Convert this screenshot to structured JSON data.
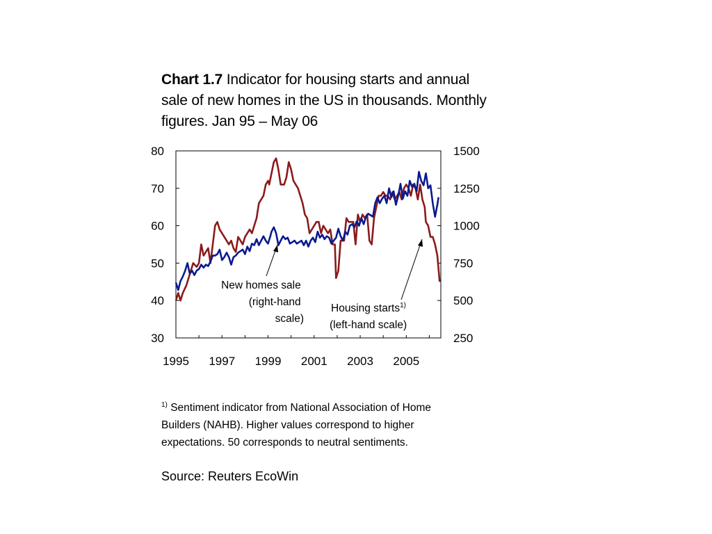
{
  "title": {
    "bold": "Chart 1.7",
    "text": " Indicator for housing starts and annual sale of new homes in the US in thousands. Monthly figures. Jan 95 – May 06"
  },
  "footnote": {
    "marker": "1)",
    "text": " Sentiment indicator from National Association of Home Builders (NAHB). Higher values correspond to higher expectations. 50 corresponds to neutral sentiments."
  },
  "source": "Source: Reuters EcoWin",
  "chart_data": {
    "type": "line",
    "x_axis": {
      "min": 1995.0,
      "max": 2006.5,
      "ticks": [
        "1995",
        "1997",
        "1999",
        "2001",
        "2003",
        "2005"
      ]
    },
    "y_left": {
      "min": 30,
      "max": 80,
      "ticks": [
        "30",
        "40",
        "50",
        "60",
        "70",
        "80"
      ]
    },
    "y_right": {
      "min": 250,
      "max": 1500,
      "ticks": [
        "250",
        "500",
        "750",
        "1000",
        "1250",
        "1500"
      ]
    },
    "series": [
      {
        "label_lines": [
          "Housing starts",
          "(left-hand scale)"
        ],
        "label_marker": "1)",
        "color": "#8b1a1a",
        "axis": "left",
        "points": [
          [
            1995.0,
            40
          ],
          [
            1995.1,
            42
          ],
          [
            1995.2,
            40
          ],
          [
            1995.3,
            42
          ],
          [
            1995.45,
            44
          ],
          [
            1995.6,
            47
          ],
          [
            1995.75,
            50
          ],
          [
            1995.9,
            49
          ],
          [
            1996.0,
            50
          ],
          [
            1996.1,
            55
          ],
          [
            1996.2,
            52
          ],
          [
            1996.3,
            53
          ],
          [
            1996.4,
            54
          ],
          [
            1996.5,
            50
          ],
          [
            1996.6,
            55
          ],
          [
            1996.7,
            60
          ],
          [
            1996.8,
            61
          ],
          [
            1996.9,
            59
          ],
          [
            1997.0,
            58
          ],
          [
            1997.1,
            57
          ],
          [
            1997.2,
            56
          ],
          [
            1997.3,
            55
          ],
          [
            1997.4,
            56
          ],
          [
            1997.5,
            54
          ],
          [
            1997.6,
            53
          ],
          [
            1997.7,
            57
          ],
          [
            1997.8,
            56
          ],
          [
            1997.9,
            55
          ],
          [
            1998.0,
            57
          ],
          [
            1998.1,
            58
          ],
          [
            1998.2,
            59
          ],
          [
            1998.3,
            58
          ],
          [
            1998.4,
            60
          ],
          [
            1998.5,
            62
          ],
          [
            1998.6,
            66
          ],
          [
            1998.7,
            67
          ],
          [
            1998.8,
            68
          ],
          [
            1998.9,
            71
          ],
          [
            1999.0,
            72
          ],
          [
            1999.05,
            71
          ],
          [
            1999.15,
            74
          ],
          [
            1999.25,
            77
          ],
          [
            1999.35,
            78
          ],
          [
            1999.45,
            75
          ],
          [
            1999.55,
            71
          ],
          [
            1999.7,
            71
          ],
          [
            1999.8,
            73
          ],
          [
            1999.9,
            77
          ],
          [
            2000.0,
            75
          ],
          [
            2000.1,
            72
          ],
          [
            2000.2,
            71
          ],
          [
            2000.3,
            70
          ],
          [
            2000.4,
            68
          ],
          [
            2000.5,
            66
          ],
          [
            2000.6,
            63
          ],
          [
            2000.7,
            62
          ],
          [
            2000.8,
            58
          ],
          [
            2000.9,
            59
          ],
          [
            2001.0,
            60
          ],
          [
            2001.1,
            61
          ],
          [
            2001.2,
            61
          ],
          [
            2001.3,
            58
          ],
          [
            2001.4,
            60
          ],
          [
            2001.5,
            59
          ],
          [
            2001.6,
            58
          ],
          [
            2001.7,
            59
          ],
          [
            2001.8,
            55
          ],
          [
            2001.9,
            55
          ],
          [
            2001.95,
            46
          ],
          [
            2002.05,
            48
          ],
          [
            2002.15,
            56
          ],
          [
            2002.3,
            56
          ],
          [
            2002.4,
            62
          ],
          [
            2002.5,
            61
          ],
          [
            2002.6,
            61
          ],
          [
            2002.7,
            61
          ],
          [
            2002.8,
            55
          ],
          [
            2002.9,
            63
          ],
          [
            2003.0,
            61
          ],
          [
            2003.1,
            63
          ],
          [
            2003.2,
            62
          ],
          [
            2003.3,
            63
          ],
          [
            2003.4,
            56
          ],
          [
            2003.5,
            55
          ],
          [
            2003.6,
            62
          ],
          [
            2003.7,
            65
          ],
          [
            2003.8,
            68
          ],
          [
            2003.9,
            68
          ],
          [
            2004.0,
            69
          ],
          [
            2004.1,
            68
          ],
          [
            2004.2,
            68
          ],
          [
            2004.3,
            67
          ],
          [
            2004.4,
            69
          ],
          [
            2004.5,
            67
          ],
          [
            2004.6,
            68
          ],
          [
            2004.7,
            69
          ],
          [
            2004.8,
            67
          ],
          [
            2004.9,
            70
          ],
          [
            2005.0,
            71
          ],
          [
            2005.1,
            70
          ],
          [
            2005.2,
            68
          ],
          [
            2005.3,
            71
          ],
          [
            2005.4,
            70
          ],
          [
            2005.5,
            67
          ],
          [
            2005.6,
            71
          ],
          [
            2005.7,
            67
          ],
          [
            2005.8,
            65
          ],
          [
            2005.85,
            61
          ],
          [
            2005.95,
            60
          ],
          [
            2006.05,
            57
          ],
          [
            2006.15,
            57
          ],
          [
            2006.25,
            55
          ],
          [
            2006.35,
            52
          ],
          [
            2006.45,
            45
          ]
        ]
      },
      {
        "label_lines": [
          "New homes sale",
          "(right-hand",
          "scale)"
        ],
        "color": "#0a1a8f",
        "axis": "right",
        "points": [
          [
            1995.0,
            620
          ],
          [
            1995.1,
            570
          ],
          [
            1995.2,
            630
          ],
          [
            1995.3,
            660
          ],
          [
            1995.4,
            700
          ],
          [
            1995.5,
            750
          ],
          [
            1995.6,
            680
          ],
          [
            1995.7,
            700
          ],
          [
            1995.8,
            670
          ],
          [
            1995.9,
            700
          ],
          [
            1996.0,
            710
          ],
          [
            1996.1,
            740
          ],
          [
            1996.2,
            720
          ],
          [
            1996.3,
            740
          ],
          [
            1996.4,
            730
          ],
          [
            1996.5,
            760
          ],
          [
            1996.6,
            800
          ],
          [
            1996.7,
            800
          ],
          [
            1996.8,
            810
          ],
          [
            1996.9,
            840
          ],
          [
            1997.0,
            770
          ],
          [
            1997.1,
            790
          ],
          [
            1997.2,
            820
          ],
          [
            1997.3,
            790
          ],
          [
            1997.4,
            740
          ],
          [
            1997.5,
            790
          ],
          [
            1997.6,
            800
          ],
          [
            1997.7,
            820
          ],
          [
            1997.8,
            830
          ],
          [
            1997.9,
            840
          ],
          [
            1998.0,
            810
          ],
          [
            1998.1,
            860
          ],
          [
            1998.2,
            830
          ],
          [
            1998.3,
            880
          ],
          [
            1998.4,
            870
          ],
          [
            1998.5,
            910
          ],
          [
            1998.6,
            870
          ],
          [
            1998.7,
            900
          ],
          [
            1998.8,
            930
          ],
          [
            1998.9,
            900
          ],
          [
            1999.0,
            880
          ],
          [
            1999.1,
            930
          ],
          [
            1999.15,
            960
          ],
          [
            1999.25,
            990
          ],
          [
            1999.35,
            950
          ],
          [
            1999.45,
            870
          ],
          [
            1999.55,
            900
          ],
          [
            1999.65,
            930
          ],
          [
            1999.75,
            910
          ],
          [
            1999.85,
            920
          ],
          [
            1999.95,
            880
          ],
          [
            2000.05,
            890
          ],
          [
            2000.15,
            900
          ],
          [
            2000.25,
            880
          ],
          [
            2000.35,
            890
          ],
          [
            2000.45,
            900
          ],
          [
            2000.55,
            870
          ],
          [
            2000.65,
            900
          ],
          [
            2000.75,
            860
          ],
          [
            2000.85,
            900
          ],
          [
            2000.95,
            920
          ],
          [
            2001.05,
            890
          ],
          [
            2001.15,
            960
          ],
          [
            2001.25,
            920
          ],
          [
            2001.35,
            940
          ],
          [
            2001.45,
            910
          ],
          [
            2001.55,
            930
          ],
          [
            2001.65,
            920
          ],
          [
            2001.75,
            880
          ],
          [
            2001.85,
            900
          ],
          [
            2001.95,
            920
          ],
          [
            2002.05,
            980
          ],
          [
            2002.15,
            930
          ],
          [
            2002.25,
            900
          ],
          [
            2002.35,
            960
          ],
          [
            2002.45,
            940
          ],
          [
            2002.55,
            1000
          ],
          [
            2002.65,
            1010
          ],
          [
            2002.75,
            990
          ],
          [
            2002.85,
            1030
          ],
          [
            2002.95,
            1000
          ],
          [
            2003.05,
            1050
          ],
          [
            2003.15,
            1010
          ],
          [
            2003.25,
            1060
          ],
          [
            2003.35,
            1080
          ],
          [
            2003.45,
            1070
          ],
          [
            2003.55,
            1060
          ],
          [
            2003.65,
            1150
          ],
          [
            2003.75,
            1190
          ],
          [
            2003.85,
            1150
          ],
          [
            2003.95,
            1180
          ],
          [
            2004.05,
            1200
          ],
          [
            2004.15,
            1150
          ],
          [
            2004.25,
            1250
          ],
          [
            2004.35,
            1190
          ],
          [
            2004.45,
            1230
          ],
          [
            2004.55,
            1140
          ],
          [
            2004.65,
            1200
          ],
          [
            2004.75,
            1280
          ],
          [
            2004.85,
            1180
          ],
          [
            2004.95,
            1230
          ],
          [
            2005.05,
            1200
          ],
          [
            2005.15,
            1300
          ],
          [
            2005.25,
            1260
          ],
          [
            2005.35,
            1280
          ],
          [
            2005.45,
            1230
          ],
          [
            2005.55,
            1360
          ],
          [
            2005.65,
            1300
          ],
          [
            2005.75,
            1270
          ],
          [
            2005.85,
            1350
          ],
          [
            2005.95,
            1250
          ],
          [
            2006.05,
            1270
          ],
          [
            2006.15,
            1150
          ],
          [
            2006.25,
            1060
          ],
          [
            2006.35,
            1140
          ],
          [
            2006.4,
            1190
          ]
        ]
      }
    ]
  }
}
